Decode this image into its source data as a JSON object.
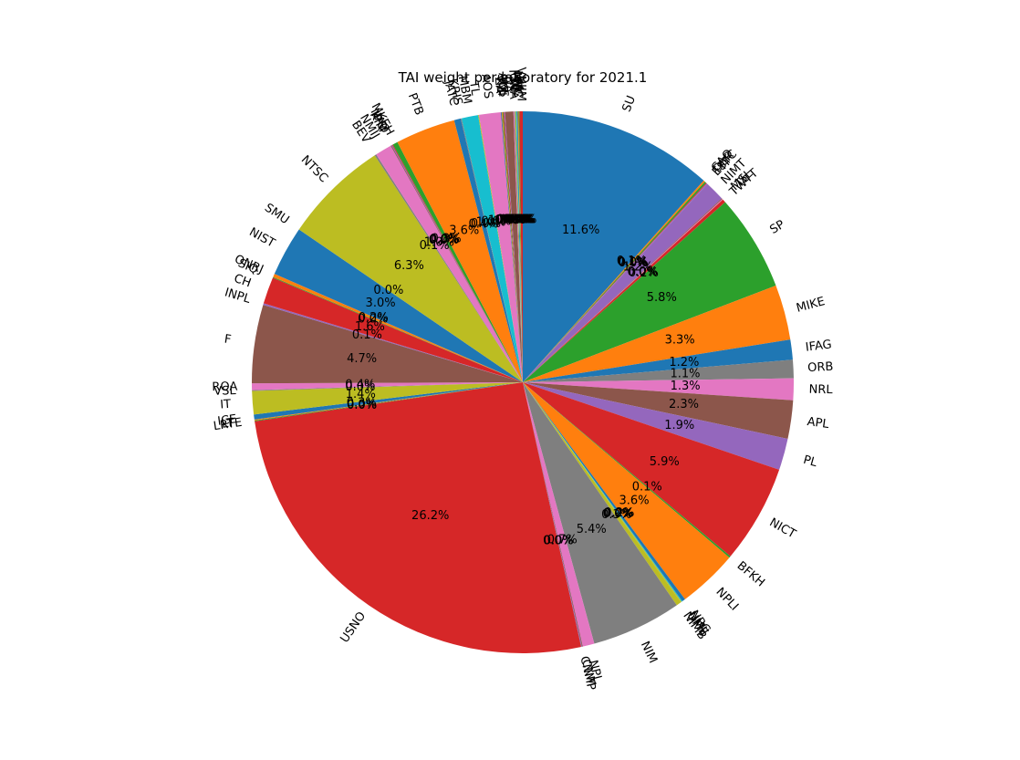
{
  "chart_data": {
    "type": "pie",
    "title": "TAI weight per laboratory for 2021.1",
    "start_angle_deg": 90,
    "direction": "clockwise",
    "autopct_format": "%.1f%%",
    "slices": [
      {
        "label": "SU",
        "value": 11.7,
        "color": "#1f77b4"
      },
      {
        "label": "CAO",
        "value": 0.1,
        "color": "#ff7f0e"
      },
      {
        "label": "DLR",
        "value": 0.1,
        "color": "#2ca02c"
      },
      {
        "label": "ESTC",
        "value": 0.05,
        "color": "#d62728"
      },
      {
        "label": "IT",
        "value": 0.05,
        "color": "#9467bd"
      },
      {
        "label": "NIMT",
        "value": 1.2,
        "color": "#9467bd"
      },
      {
        "label": "MSL",
        "value": 0.05,
        "color": "#8c564b"
      },
      {
        "label": "TL",
        "value": 0.05,
        "color": "#e377c2"
      },
      {
        "label": "TWTT",
        "value": 0.2,
        "color": "#d62728"
      },
      {
        "label": "SP",
        "value": 5.8,
        "color": "#2ca02c"
      },
      {
        "label": "MIKE",
        "value": 3.3,
        "color": "#ff7f0e"
      },
      {
        "label": "IFAG",
        "value": 1.2,
        "color": "#1f77b4"
      },
      {
        "label": "ORB",
        "value": 1.1,
        "color": "#7f7f7f"
      },
      {
        "label": "NRL",
        "value": 1.3,
        "color": "#e377c2"
      },
      {
        "label": "APL",
        "value": 2.3,
        "color": "#8c564b"
      },
      {
        "label": "PL",
        "value": 1.9,
        "color": "#9467bd"
      },
      {
        "label": "NICT",
        "value": 5.9,
        "color": "#d62728"
      },
      {
        "label": "BFKH",
        "value": 0.1,
        "color": "#2ca02c"
      },
      {
        "label": "NPLI",
        "value": 3.6,
        "color": "#ff7f0e"
      },
      {
        "label": "NRC",
        "value": 0.2,
        "color": "#1f77b4"
      },
      {
        "label": "NMIJ",
        "value": 0.05,
        "color": "#17becf"
      },
      {
        "label": "UME",
        "value": 0.05,
        "color": "#bcbd22"
      },
      {
        "label": "NIMB",
        "value": 0.3,
        "color": "#bcbd22"
      },
      {
        "label": "NIM",
        "value": 5.4,
        "color": "#7f7f7f"
      },
      {
        "label": "NPL",
        "value": 0.7,
        "color": "#e377c2"
      },
      {
        "label": "CNM",
        "value": 0.05,
        "color": "#8c564b"
      },
      {
        "label": "CNMP",
        "value": 0.05,
        "color": "#9467bd"
      },
      {
        "label": "USNO",
        "value": 26.3,
        "color": "#d62728"
      },
      {
        "label": "LRTE",
        "value": 0.05,
        "color": "#2ca02c"
      },
      {
        "label": "LT",
        "value": 0.05,
        "color": "#ff7f0e"
      },
      {
        "label": "ICE",
        "value": 0.3,
        "color": "#1f77b4"
      },
      {
        "label": "IT",
        "value": 1.4,
        "color": "#bcbd22"
      },
      {
        "label": "VSL",
        "value": 0.05,
        "color": "#7f7f7f"
      },
      {
        "label": "ROA",
        "value": 0.4,
        "color": "#e377c2"
      },
      {
        "label": "F",
        "value": 4.7,
        "color": "#8c564b"
      },
      {
        "label": "INPL",
        "value": 0.1,
        "color": "#9467bd"
      },
      {
        "label": "CH",
        "value": 1.6,
        "color": "#d62728"
      },
      {
        "label": "SIQ",
        "value": 0.05,
        "color": "#2ca02c"
      },
      {
        "label": "ONRJ",
        "value": 0.2,
        "color": "#ff7f0e"
      },
      {
        "label": "NIST",
        "value": 3.0,
        "color": "#1f77b4"
      },
      {
        "label": "SMU",
        "value": 0.0,
        "color": "#17becf"
      },
      {
        "label": "NTSC",
        "value": 6.3,
        "color": "#bcbd22"
      },
      {
        "label": "BEV",
        "value": 0.1,
        "color": "#7f7f7f"
      },
      {
        "label": "NMIJ",
        "value": 1.0,
        "color": "#e377c2"
      },
      {
        "label": "KIM",
        "value": 0.05,
        "color": "#8c564b"
      },
      {
        "label": "IPQ",
        "value": 0.05,
        "color": "#9467bd"
      },
      {
        "label": "NAO",
        "value": 0.05,
        "color": "#d62728"
      },
      {
        "label": "MKEH",
        "value": 0.3,
        "color": "#2ca02c"
      },
      {
        "label": "PTB",
        "value": 3.6,
        "color": "#ff7f0e"
      },
      {
        "label": "JATC",
        "value": 0.4,
        "color": "#1f77b4"
      },
      {
        "label": "KRIS",
        "value": 0.05,
        "color": "#7f7f7f"
      },
      {
        "label": "MBM",
        "value": 1.0,
        "color": "#17becf"
      },
      {
        "label": "TL",
        "value": 0.05,
        "color": "#bcbd22"
      },
      {
        "label": "AOS",
        "value": 1.3,
        "color": "#e377c2"
      },
      {
        "label": "ZA",
        "value": 0.05,
        "color": "#1f77b4"
      },
      {
        "label": "KZ",
        "value": 0.05,
        "color": "#ff7f0e"
      },
      {
        "label": "VMI",
        "value": 0.05,
        "color": "#2ca02c"
      },
      {
        "label": "SCL",
        "value": 0.05,
        "color": "#d62728"
      },
      {
        "label": "AUS",
        "value": 0.05,
        "color": "#9467bd"
      },
      {
        "label": "UA",
        "value": 0.5,
        "color": "#8c564b"
      },
      {
        "label": "IGNA",
        "value": 0.05,
        "color": "#e377c2"
      },
      {
        "label": "SG",
        "value": 0.05,
        "color": "#7f7f7f"
      },
      {
        "label": "LV",
        "value": 0.05,
        "color": "#bcbd22"
      },
      {
        "label": "TP",
        "value": 0.05,
        "color": "#17becf"
      },
      {
        "label": "MTC",
        "value": 0.05,
        "color": "#1f77b4"
      },
      {
        "label": "NMC",
        "value": 0.05,
        "color": "#ff7f0e"
      },
      {
        "label": "UA",
        "value": 0.05,
        "color": "#2ca02c"
      },
      {
        "label": "VNIIM",
        "value": 0.2,
        "color": "#d62728"
      }
    ]
  }
}
